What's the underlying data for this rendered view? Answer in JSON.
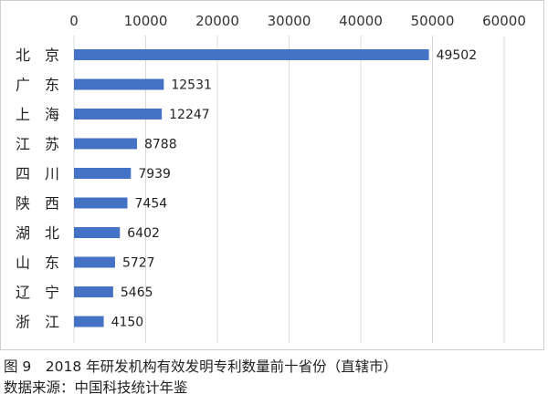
{
  "chart_data": {
    "type": "bar",
    "orientation": "horizontal",
    "categories": [
      "北　京",
      "广　东",
      "上　海",
      "江　苏",
      "四　川",
      "陕　西",
      "湖　北",
      "山　东",
      "辽　宁",
      "浙　江"
    ],
    "values": [
      49502,
      12531,
      12247,
      8788,
      7939,
      7454,
      6402,
      5727,
      5465,
      4150
    ],
    "value_labels": [
      "49502",
      "12531",
      "12247",
      "8788",
      "7939",
      "7454",
      "6402",
      "5727",
      "5465",
      "4150"
    ],
    "xlim": [
      0,
      60000
    ],
    "xticks": [
      "0",
      "10000",
      "20000",
      "30000",
      "40000",
      "50000",
      "60000"
    ],
    "xtick_values": [
      0,
      10000,
      20000,
      30000,
      40000,
      50000,
      60000
    ],
    "grid": "vertical",
    "axis_position": "top",
    "bar_color": "#4472c4",
    "grid_color": "#d9d9d9"
  },
  "caption": "图 9　2018 年研发机构有效发明专利数量前十省份（直辖市）",
  "source": "数据来源：中国科技统计年鉴"
}
